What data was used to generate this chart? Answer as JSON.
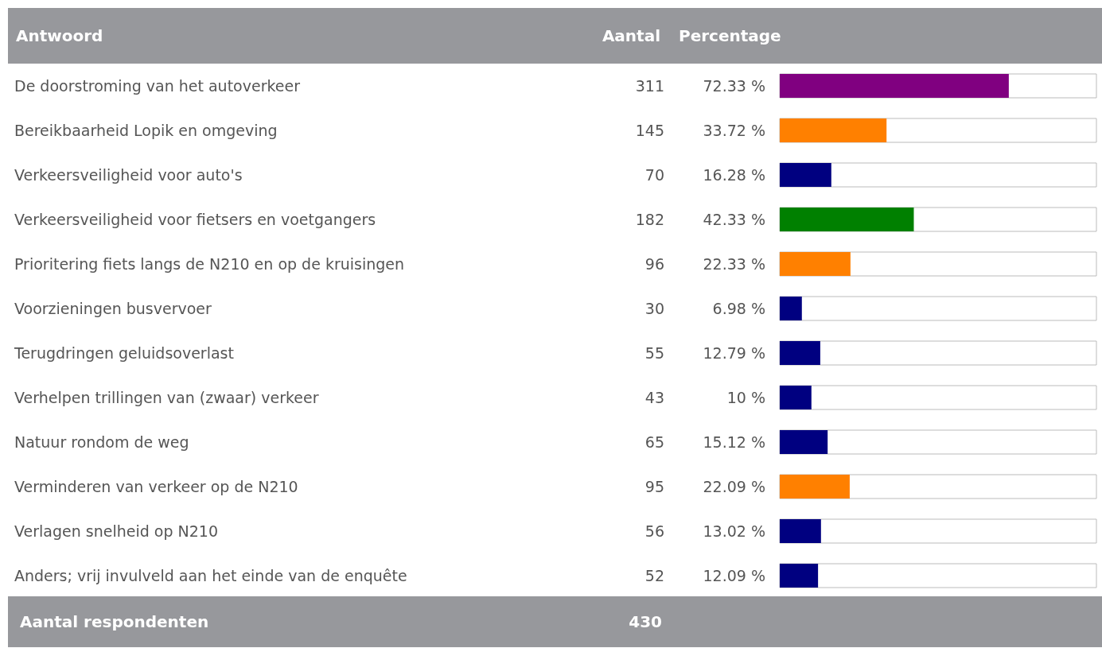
{
  "chart_data": {
    "type": "bar",
    "orientation": "horizontal",
    "categories": [
      "De doorstroming van het autoverkeer",
      "Bereikbaarheid Lopik en omgeving",
      "Verkeersveiligheid voor auto's",
      "Verkeersveiligheid voor fietsers en voetgangers",
      "Prioritering fiets langs de N210 en op de kruisingen",
      "Voorzieningen busvervoer",
      "Terugdringen geluidsoverlast",
      "Verhelpen trillingen van (zwaar) verkeer",
      "Natuur rondom de weg",
      "Verminderen van verkeer op de N210",
      "Verlagen snelheid op N210",
      "Anders; vrij invulveld aan het einde van de enquête"
    ],
    "values": [
      72.33,
      33.72,
      16.28,
      42.33,
      22.33,
      6.98,
      12.79,
      10,
      15.12,
      22.09,
      13.02,
      12.09
    ],
    "value_labels": [
      "72.33 %",
      "33.72 %",
      "16.28 %",
      "42.33 %",
      "22.33 %",
      "6.98 %",
      "12.79 %",
      "10 %",
      "15.12 %",
      "22.09 %",
      "13.02 %",
      "12.09 %"
    ],
    "colors": [
      "#800080",
      "#ff8000",
      "#000080",
      "#008000",
      "#ff8000",
      "#000080",
      "#000080",
      "#000080",
      "#000080",
      "#ff8000",
      "#000080",
      "#000080"
    ],
    "xlim": [
      0,
      100
    ],
    "grid": false,
    "annotations": [
      "Antwoord",
      "Aantal",
      "Percentage",
      "Aantal respondenten",
      "430",
      "311",
      "145",
      "70",
      "182",
      "96",
      "30",
      "55",
      "43",
      "65",
      "95",
      "56",
      "52"
    ]
  }
}
